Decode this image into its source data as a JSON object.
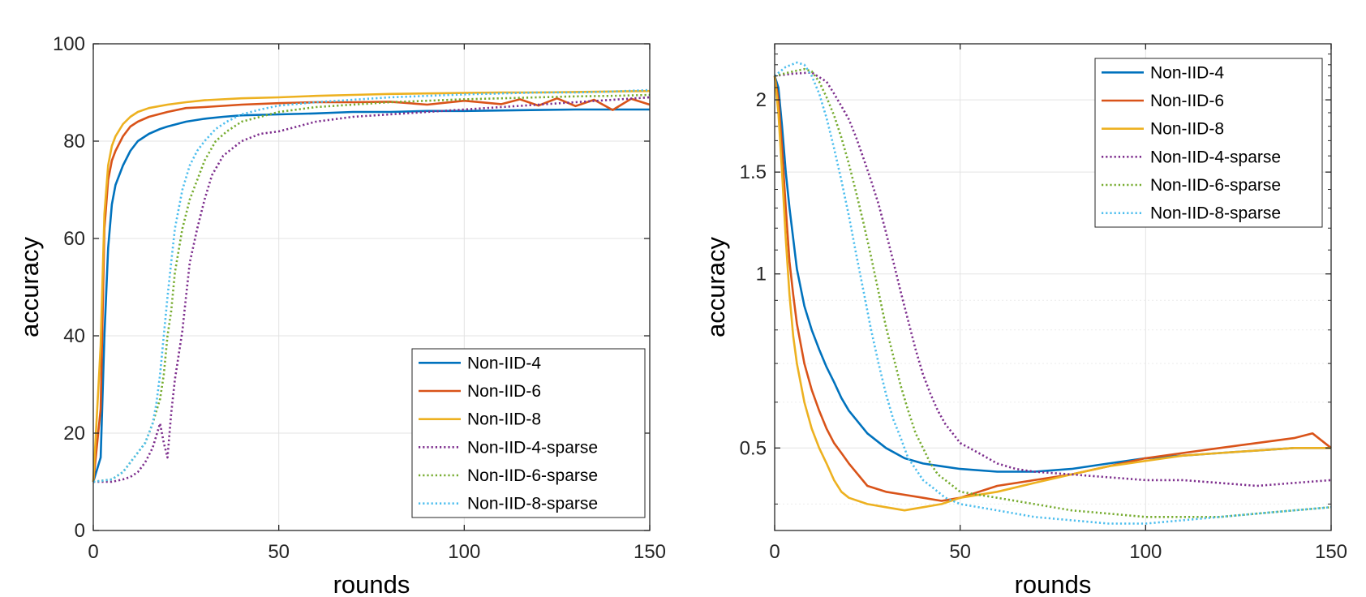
{
  "chart_data": [
    {
      "type": "line",
      "title": "",
      "xlabel": "rounds",
      "ylabel": "accuracy",
      "xlim": [
        0,
        150
      ],
      "ylim": [
        0,
        100
      ],
      "yscale": "linear",
      "grid": true,
      "xticks": [
        "0",
        "50",
        "100",
        "150"
      ],
      "yticks": [
        "0",
        "20",
        "40",
        "60",
        "80",
        "100"
      ],
      "legend_position": "bottom-right",
      "series": [
        {
          "name": "Non-IID-4",
          "color": "#0072BD",
          "style": "solid",
          "x": [
            0,
            2,
            3,
            4,
            5,
            6,
            8,
            10,
            12,
            15,
            18,
            20,
            25,
            30,
            35,
            40,
            50,
            60,
            70,
            80,
            90,
            100,
            110,
            120,
            130,
            140,
            150
          ],
          "y": [
            10,
            15,
            40,
            58,
            67,
            71,
            75,
            78,
            80,
            81.5,
            82.5,
            83,
            84,
            84.6,
            85,
            85.3,
            85.5,
            85.7,
            86,
            86,
            86.2,
            86.2,
            86.3,
            86.4,
            86.5,
            86.5,
            86.5
          ]
        },
        {
          "name": "Non-IID-6",
          "color": "#D95319",
          "style": "solid",
          "x": [
            0,
            2,
            3,
            4,
            5,
            6,
            8,
            10,
            12,
            15,
            20,
            25,
            30,
            40,
            50,
            60,
            70,
            80,
            90,
            100,
            110,
            115,
            120,
            125,
            130,
            135,
            140,
            145,
            150
          ],
          "y": [
            10,
            25,
            62,
            72,
            76,
            78,
            81,
            83,
            84,
            85,
            86,
            86.8,
            87,
            87.5,
            87.8,
            88,
            88,
            88.1,
            87.5,
            88.3,
            87.6,
            88.6,
            87.3,
            88.8,
            87.2,
            88.5,
            86.4,
            88.7,
            87.5
          ]
        },
        {
          "name": "Non-IID-8",
          "color": "#EDB120",
          "style": "solid",
          "x": [
            0,
            2,
            3,
            4,
            5,
            6,
            8,
            10,
            12,
            15,
            20,
            25,
            30,
            40,
            50,
            60,
            70,
            80,
            90,
            100,
            110,
            120,
            130,
            140,
            150
          ],
          "y": [
            10,
            38,
            65,
            75,
            79,
            81,
            83.5,
            85,
            86,
            86.8,
            87.5,
            88,
            88.4,
            88.8,
            89,
            89.3,
            89.5,
            89.7,
            89.8,
            89.9,
            90,
            90,
            90.1,
            90.2,
            90.3
          ]
        },
        {
          "name": "Non-IID-4-sparse",
          "color": "#7E2F8E",
          "style": "dotted",
          "x": [
            0,
            5,
            8,
            10,
            12,
            14,
            16,
            18,
            19,
            20,
            21,
            22,
            23,
            24,
            25,
            26,
            28,
            30,
            32,
            35,
            40,
            45,
            50,
            60,
            70,
            80,
            90,
            100,
            110,
            120,
            130,
            140,
            150
          ],
          "y": [
            10,
            10,
            10.5,
            11,
            12,
            14,
            17,
            22,
            18,
            15,
            24,
            31,
            36,
            41,
            48,
            55,
            62,
            68,
            73,
            77,
            80,
            81.5,
            82,
            84,
            85,
            85.5,
            86,
            86.5,
            87,
            87.5,
            88,
            88.5,
            89
          ]
        },
        {
          "name": "Non-IID-6-sparse",
          "color": "#77AC30",
          "style": "dotted",
          "x": [
            0,
            5,
            8,
            10,
            12,
            14,
            16,
            18,
            19,
            20,
            21,
            22,
            24,
            26,
            28,
            30,
            33,
            36,
            40,
            45,
            50,
            60,
            70,
            80,
            90,
            100,
            110,
            120,
            130,
            140,
            150
          ],
          "y": [
            10,
            10.5,
            12,
            14,
            16,
            18,
            22,
            27,
            32,
            40,
            45,
            53,
            62,
            68,
            72,
            76,
            80,
            82,
            84,
            85,
            86,
            87,
            87.5,
            88,
            88.3,
            88.6,
            88.8,
            89,
            89.2,
            89.3,
            89.5
          ]
        },
        {
          "name": "Non-IID-8-sparse",
          "color": "#4DBEEE",
          "style": "dotted",
          "x": [
            0,
            5,
            8,
            10,
            12,
            14,
            16,
            17,
            18,
            19,
            20,
            21,
            22,
            24,
            26,
            28,
            30,
            33,
            36,
            40,
            45,
            50,
            60,
            70,
            80,
            90,
            100,
            110,
            120,
            130,
            140,
            150
          ],
          "y": [
            10,
            10.5,
            12,
            14,
            16,
            18,
            22,
            26,
            32,
            40,
            48,
            55,
            62,
            70,
            75,
            78,
            80,
            82.5,
            84,
            85.5,
            86.5,
            87.3,
            88,
            88.5,
            89,
            89.3,
            89.6,
            89.8,
            90,
            90,
            90.2,
            90.5
          ]
        }
      ]
    },
    {
      "type": "line",
      "title": "",
      "xlabel": "rounds",
      "ylabel": "accuracy",
      "xlim": [
        0,
        150
      ],
      "ylim": [
        0.36,
        2.5
      ],
      "yscale": "log",
      "grid": true,
      "xticks": [
        "0",
        "50",
        "100",
        "150"
      ],
      "yticks": [
        "0.5",
        "1",
        "1.5",
        "2"
      ],
      "legend_position": "top-right",
      "series": [
        {
          "name": "Non-IID-4",
          "color": "#0072BD",
          "style": "solid",
          "x": [
            0,
            1,
            2,
            3,
            4,
            5,
            6,
            8,
            10,
            12,
            14,
            16,
            18,
            20,
            25,
            30,
            35,
            40,
            45,
            50,
            60,
            70,
            80,
            90,
            100,
            110,
            120,
            130,
            140,
            150
          ],
          "y": [
            2.2,
            2.1,
            1.8,
            1.5,
            1.3,
            1.15,
            1.02,
            0.88,
            0.8,
            0.74,
            0.69,
            0.65,
            0.61,
            0.58,
            0.53,
            0.5,
            0.48,
            0.47,
            0.465,
            0.46,
            0.455,
            0.455,
            0.46,
            0.47,
            0.48,
            0.485,
            0.49,
            0.495,
            0.5,
            0.5
          ]
        },
        {
          "name": "Non-IID-6",
          "color": "#D95319",
          "style": "solid",
          "x": [
            0,
            1,
            2,
            3,
            4,
            5,
            6,
            8,
            10,
            12,
            14,
            16,
            18,
            20,
            25,
            30,
            35,
            40,
            45,
            50,
            60,
            70,
            80,
            90,
            100,
            110,
            120,
            130,
            140,
            145,
            150
          ],
          "y": [
            2.2,
            2.0,
            1.65,
            1.3,
            1.05,
            0.92,
            0.82,
            0.7,
            0.63,
            0.58,
            0.54,
            0.51,
            0.49,
            0.47,
            0.43,
            0.42,
            0.415,
            0.41,
            0.405,
            0.41,
            0.43,
            0.44,
            0.45,
            0.465,
            0.48,
            0.49,
            0.5,
            0.51,
            0.52,
            0.53,
            0.5
          ]
        },
        {
          "name": "Non-IID-8",
          "color": "#EDB120",
          "style": "solid",
          "x": [
            0,
            1,
            2,
            3,
            4,
            5,
            6,
            8,
            10,
            12,
            14,
            16,
            18,
            20,
            25,
            30,
            35,
            40,
            45,
            50,
            60,
            70,
            80,
            90,
            100,
            110,
            120,
            130,
            140,
            150
          ],
          "y": [
            2.2,
            1.9,
            1.5,
            1.15,
            0.92,
            0.78,
            0.7,
            0.6,
            0.54,
            0.5,
            0.47,
            0.44,
            0.42,
            0.41,
            0.4,
            0.395,
            0.39,
            0.395,
            0.4,
            0.41,
            0.42,
            0.435,
            0.45,
            0.465,
            0.475,
            0.485,
            0.49,
            0.495,
            0.5,
            0.5
          ]
        },
        {
          "name": "Non-IID-4-sparse",
          "color": "#7E2F8E",
          "style": "dotted",
          "x": [
            0,
            5,
            10,
            14,
            16,
            18,
            20,
            22,
            24,
            26,
            28,
            30,
            32,
            34,
            36,
            38,
            40,
            42,
            44,
            46,
            48,
            50,
            55,
            60,
            65,
            70,
            80,
            90,
            100,
            110,
            120,
            130,
            140,
            150
          ],
          "y": [
            2.2,
            2.22,
            2.23,
            2.15,
            2.05,
            1.95,
            1.85,
            1.72,
            1.58,
            1.45,
            1.32,
            1.18,
            1.05,
            0.93,
            0.83,
            0.74,
            0.67,
            0.62,
            0.58,
            0.55,
            0.53,
            0.51,
            0.49,
            0.47,
            0.46,
            0.455,
            0.45,
            0.445,
            0.44,
            0.44,
            0.435,
            0.43,
            0.435,
            0.44
          ]
        },
        {
          "name": "Non-IID-6-sparse",
          "color": "#77AC30",
          "style": "dotted",
          "x": [
            0,
            5,
            8,
            10,
            12,
            14,
            16,
            18,
            20,
            22,
            24,
            26,
            28,
            30,
            32,
            34,
            36,
            38,
            40,
            42,
            44,
            46,
            48,
            50,
            60,
            70,
            80,
            90,
            100,
            110,
            120,
            130,
            140,
            150
          ],
          "y": [
            2.2,
            2.24,
            2.26,
            2.24,
            2.15,
            2.02,
            1.88,
            1.72,
            1.55,
            1.38,
            1.22,
            1.07,
            0.93,
            0.81,
            0.72,
            0.64,
            0.58,
            0.53,
            0.5,
            0.47,
            0.45,
            0.44,
            0.43,
            0.42,
            0.41,
            0.4,
            0.39,
            0.385,
            0.38,
            0.38,
            0.38,
            0.385,
            0.39,
            0.395
          ]
        },
        {
          "name": "Non-IID-8-sparse",
          "color": "#4DBEEE",
          "style": "dotted",
          "x": [
            0,
            3,
            6,
            8,
            10,
            12,
            14,
            16,
            18,
            20,
            22,
            24,
            26,
            28,
            30,
            32,
            34,
            36,
            38,
            40,
            42,
            44,
            46,
            48,
            50,
            55,
            60,
            70,
            80,
            90,
            100,
            110,
            120,
            130,
            140,
            150
          ],
          "y": [
            2.2,
            2.28,
            2.32,
            2.3,
            2.2,
            2.05,
            1.86,
            1.65,
            1.45,
            1.26,
            1.08,
            0.93,
            0.8,
            0.7,
            0.62,
            0.56,
            0.52,
            0.48,
            0.46,
            0.44,
            0.43,
            0.42,
            0.41,
            0.405,
            0.4,
            0.395,
            0.39,
            0.38,
            0.375,
            0.37,
            0.37,
            0.375,
            0.38,
            0.385,
            0.39,
            0.395
          ]
        }
      ]
    }
  ]
}
